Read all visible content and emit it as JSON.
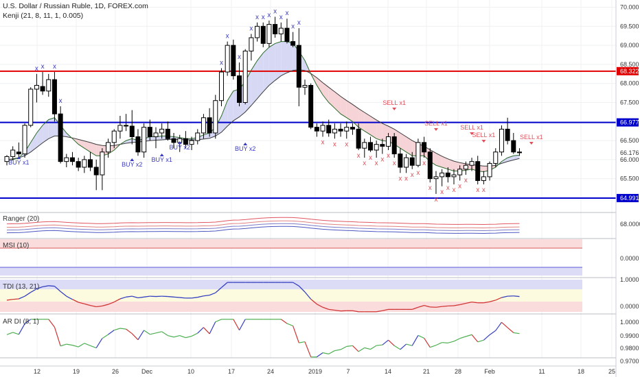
{
  "header": {
    "title": "U.S. Dollar / Russian Ruble, 1D, FOREX.com",
    "indicator": "Kenji (21, 8, 11, 1, 0.005)"
  },
  "panes": {
    "ranger": {
      "label": "Ranger (20)",
      "value": "68.0000"
    },
    "msi": {
      "label": "MSI (10)",
      "value": "0.0000"
    },
    "tdi": {
      "label": "TDI (13, 21)",
      "ticks": [
        "1.0000",
        "0.0000"
      ]
    },
    "ardi": {
      "label": "AR DI (8, 1)",
      "ticks": [
        "1.0000",
        "0.9900",
        "0.9800",
        "0.9700"
      ]
    }
  },
  "colors": {
    "bull": "#ffffff",
    "bear": "#000000",
    "level_red": "#e00000",
    "level_blue": "#0000cc",
    "sell": "#e0505a",
    "buy": "#3b3bc0",
    "cloud_bull": "#d7d9f4",
    "cloud_bear": "#f6d3d6",
    "cloud_green": "#d9efd9"
  },
  "chart_data": {
    "type": "candlestick",
    "symbol": "U.S. Dollar / Russian Ruble",
    "timeframe": "1D",
    "source": "FOREX.com",
    "x_labels": [
      "12",
      "19",
      "26",
      "Dec",
      "10",
      "17",
      "24",
      "2019",
      "7",
      "14",
      "21",
      "28",
      "Feb",
      "11",
      "18",
      "25"
    ],
    "y_ticks": [
      "70.000",
      "69.500",
      "69.000",
      "68.500",
      "68.000",
      "67.500",
      "67.000",
      "66.500",
      "66.000",
      "65.500",
      "65.000"
    ],
    "ylim": [
      64.9,
      70.1
    ],
    "levels": [
      {
        "value": 68.322,
        "label": "68.322",
        "color": "red"
      },
      {
        "value": 66.977,
        "label": "66.977",
        "color": "blue"
      },
      {
        "value": 64.991,
        "label": "64.991",
        "color": "blue"
      }
    ],
    "last_price": {
      "value": 66.176,
      "label": "66.176"
    },
    "candles": [
      [
        65.95,
        66.12,
        65.85,
        66.08
      ],
      [
        66.08,
        66.35,
        65.98,
        66.25
      ],
      [
        66.2,
        66.45,
        66.05,
        66.15
      ],
      [
        66.15,
        66.95,
        66.05,
        66.9
      ],
      [
        66.9,
        67.9,
        66.85,
        67.85
      ],
      [
        67.85,
        68.25,
        67.5,
        67.95
      ],
      [
        67.92,
        68.3,
        67.7,
        67.8
      ],
      [
        67.8,
        68.25,
        67.65,
        68.1
      ],
      [
        68.1,
        68.3,
        67.0,
        67.2
      ],
      [
        67.2,
        67.4,
        65.9,
        65.95
      ],
      [
        65.95,
        66.15,
        65.8,
        66.05
      ],
      [
        66.05,
        66.2,
        65.85,
        65.95
      ],
      [
        65.95,
        66.05,
        65.7,
        65.8
      ],
      [
        65.8,
        66.1,
        65.65,
        66.0
      ],
      [
        66.0,
        66.2,
        65.7,
        65.8
      ],
      [
        65.8,
        66.0,
        65.2,
        65.6
      ],
      [
        65.6,
        66.3,
        65.2,
        66.2
      ],
      [
        66.2,
        66.55,
        66.05,
        66.45
      ],
      [
        66.45,
        66.8,
        66.3,
        66.75
      ],
      [
        66.75,
        67.15,
        66.55,
        66.9
      ],
      [
        66.9,
        67.2,
        66.75,
        66.88
      ],
      [
        66.88,
        67.3,
        66.4,
        66.6
      ],
      [
        66.6,
        66.8,
        66.1,
        66.2
      ],
      [
        66.2,
        66.95,
        66.05,
        66.85
      ],
      [
        66.85,
        67.05,
        66.5,
        66.6
      ],
      [
        66.6,
        66.85,
        66.3,
        66.7
      ],
      [
        66.7,
        66.95,
        66.55,
        66.8
      ],
      [
        66.8,
        67.0,
        66.5,
        66.55
      ],
      [
        66.55,
        66.7,
        66.3,
        66.45
      ],
      [
        66.45,
        66.65,
        66.2,
        66.55
      ],
      [
        66.55,
        66.75,
        66.3,
        66.4
      ],
      [
        66.4,
        66.6,
        66.25,
        66.5
      ],
      [
        66.5,
        66.8,
        66.4,
        66.7
      ],
      [
        66.7,
        67.2,
        66.55,
        67.1
      ],
      [
        67.1,
        67.35,
        66.6,
        66.7
      ],
      [
        66.7,
        67.7,
        66.55,
        67.55
      ],
      [
        67.55,
        68.4,
        67.4,
        68.3
      ],
      [
        68.3,
        69.1,
        68.2,
        69.0
      ],
      [
        69.0,
        69.15,
        68.1,
        68.2
      ],
      [
        68.2,
        68.55,
        67.4,
        67.5
      ],
      [
        67.5,
        68.9,
        67.45,
        68.85
      ],
      [
        68.85,
        69.3,
        68.6,
        69.2
      ],
      [
        69.2,
        69.6,
        69.1,
        69.5
      ],
      [
        69.5,
        69.6,
        68.95,
        69.05
      ],
      [
        69.05,
        69.65,
        68.95,
        69.55
      ],
      [
        69.55,
        69.75,
        69.2,
        69.3
      ],
      [
        69.3,
        69.6,
        69.1,
        69.45
      ],
      [
        69.45,
        69.7,
        69.05,
        69.1
      ],
      [
        69.1,
        69.35,
        68.95,
        69.0
      ],
      [
        69.0,
        69.45,
        67.4,
        67.9
      ],
      [
        67.9,
        68.1,
        67.7,
        67.95
      ],
      [
        67.95,
        68.0,
        66.8,
        66.85
      ],
      [
        66.85,
        66.95,
        66.6,
        66.75
      ],
      [
        66.75,
        67.0,
        66.6,
        66.9
      ],
      [
        66.9,
        67.05,
        66.6,
        66.7
      ],
      [
        66.7,
        66.95,
        66.55,
        66.8
      ],
      [
        66.8,
        66.95,
        66.6,
        66.75
      ],
      [
        66.75,
        67.0,
        66.55,
        66.85
      ],
      [
        66.85,
        66.95,
        66.65,
        66.8
      ],
      [
        66.8,
        66.95,
        66.25,
        66.3
      ],
      [
        66.3,
        66.55,
        66.05,
        66.45
      ],
      [
        66.45,
        66.6,
        66.2,
        66.25
      ],
      [
        66.25,
        66.5,
        66.05,
        66.4
      ],
      [
        66.4,
        66.55,
        66.15,
        66.35
      ],
      [
        66.35,
        66.7,
        66.25,
        66.6
      ],
      [
        66.6,
        66.7,
        66.05,
        66.15
      ],
      [
        66.15,
        66.3,
        65.65,
        65.8
      ],
      [
        65.8,
        66.15,
        65.65,
        66.05
      ],
      [
        66.05,
        66.2,
        65.75,
        65.85
      ],
      [
        65.85,
        66.55,
        65.8,
        66.45
      ],
      [
        66.45,
        66.6,
        66.05,
        66.2
      ],
      [
        66.2,
        66.3,
        65.4,
        65.5
      ],
      [
        65.5,
        65.7,
        65.1,
        65.55
      ],
      [
        65.55,
        65.75,
        65.3,
        65.65
      ],
      [
        65.65,
        65.8,
        65.4,
        65.55
      ],
      [
        65.55,
        65.75,
        65.35,
        65.6
      ],
      [
        65.6,
        65.85,
        65.45,
        65.75
      ],
      [
        65.75,
        65.95,
        65.6,
        65.85
      ],
      [
        65.85,
        66.05,
        65.7,
        65.95
      ],
      [
        65.95,
        66.1,
        65.35,
        65.45
      ],
      [
        65.45,
        65.7,
        65.35,
        65.55
      ],
      [
        65.55,
        65.95,
        65.45,
        65.9
      ],
      [
        65.9,
        66.3,
        65.8,
        66.2
      ],
      [
        66.2,
        66.9,
        66.1,
        66.8
      ],
      [
        66.8,
        67.1,
        66.4,
        66.5
      ],
      [
        66.5,
        66.7,
        66.15,
        66.2
      ],
      [
        66.2,
        66.3,
        66.1,
        66.18
      ]
    ],
    "fast_ma": [
      65.95,
      66.0,
      66.05,
      66.2,
      66.45,
      66.7,
      66.9,
      67.05,
      67.1,
      66.9,
      66.7,
      66.55,
      66.4,
      66.3,
      66.2,
      66.1,
      66.1,
      66.15,
      66.25,
      66.4,
      66.5,
      66.55,
      66.5,
      66.55,
      66.6,
      66.6,
      66.62,
      66.62,
      66.6,
      66.58,
      66.55,
      66.55,
      66.58,
      66.65,
      66.7,
      66.85,
      67.15,
      67.55,
      67.8,
      67.85,
      68.05,
      68.35,
      68.6,
      68.8,
      68.95,
      69.05,
      69.1,
      69.1,
      69.05,
      68.85,
      68.6,
      68.25,
      67.95,
      67.7,
      67.5,
      67.35,
      67.2,
      67.1,
      67.0,
      66.85,
      66.75,
      66.65,
      66.55,
      66.5,
      66.48,
      66.4,
      66.3,
      66.2,
      66.1,
      66.1,
      66.1,
      65.95,
      65.85,
      65.8,
      65.75,
      65.7,
      65.7,
      65.72,
      65.75,
      65.7,
      65.68,
      65.72,
      65.8,
      65.95,
      66.05,
      66.1,
      66.12
    ],
    "slow_ma": [
      66.0,
      66.02,
      66.05,
      66.1,
      66.2,
      66.32,
      66.44,
      66.55,
      66.62,
      66.62,
      66.6,
      66.57,
      66.53,
      66.49,
      66.45,
      66.4,
      66.37,
      66.36,
      66.37,
      66.4,
      66.43,
      66.45,
      66.46,
      66.48,
      66.5,
      66.51,
      66.52,
      66.53,
      66.53,
      66.53,
      66.52,
      66.52,
      66.52,
      66.54,
      66.56,
      66.62,
      66.72,
      66.88,
      67.02,
      67.12,
      67.25,
      67.42,
      67.6,
      67.78,
      67.95,
      68.08,
      68.2,
      68.28,
      68.34,
      68.36,
      68.34,
      68.26,
      68.15,
      68.02,
      67.9,
      67.78,
      67.66,
      67.55,
      67.45,
      67.34,
      67.24,
      67.14,
      67.04,
      66.95,
      66.88,
      66.8,
      66.7,
      66.6,
      66.5,
      66.42,
      66.35,
      66.26,
      66.17,
      66.09,
      66.02,
      65.96,
      65.92,
      65.89,
      65.87,
      65.85,
      65.83,
      65.83,
      65.85,
      65.9,
      65.95,
      65.99,
      66.03
    ],
    "signals": [
      {
        "bar": 1,
        "type": "buy",
        "label": "BUY x1"
      },
      {
        "bar": 27,
        "type": "buy",
        "label": "BUY x2"
      },
      {
        "bar": 31,
        "type": "buy",
        "label": "BUY x1"
      },
      {
        "bar": 33,
        "type": "buy",
        "label": "BUY x2"
      },
      {
        "bar": 47,
        "type": "buy",
        "label": "BUY x2"
      },
      {
        "bar": 56,
        "type": "buy",
        "label": "BUY x2"
      },
      {
        "bar": 80,
        "type": "sell",
        "label": "SELL x1"
      },
      {
        "bar": 89,
        "type": "sell",
        "label": "SELL x1"
      },
      {
        "bar": 96,
        "type": "sell",
        "label": "SELL x1"
      },
      {
        "bar": 100,
        "type": "sell",
        "label": "SELL x1"
      },
      {
        "bar": 110,
        "type": "sell",
        "label": "SELL x1"
      }
    ],
    "sub_indicators": [
      {
        "name": "Ranger (20)",
        "value": "68.0000"
      },
      {
        "name": "MSI (10)",
        "value": "0.0000"
      },
      {
        "name": "TDI (13, 21)",
        "range": [
          0,
          1
        ]
      },
      {
        "name": "AR DI (8, 1)",
        "range": [
          0.97,
          1.0
        ]
      }
    ]
  }
}
